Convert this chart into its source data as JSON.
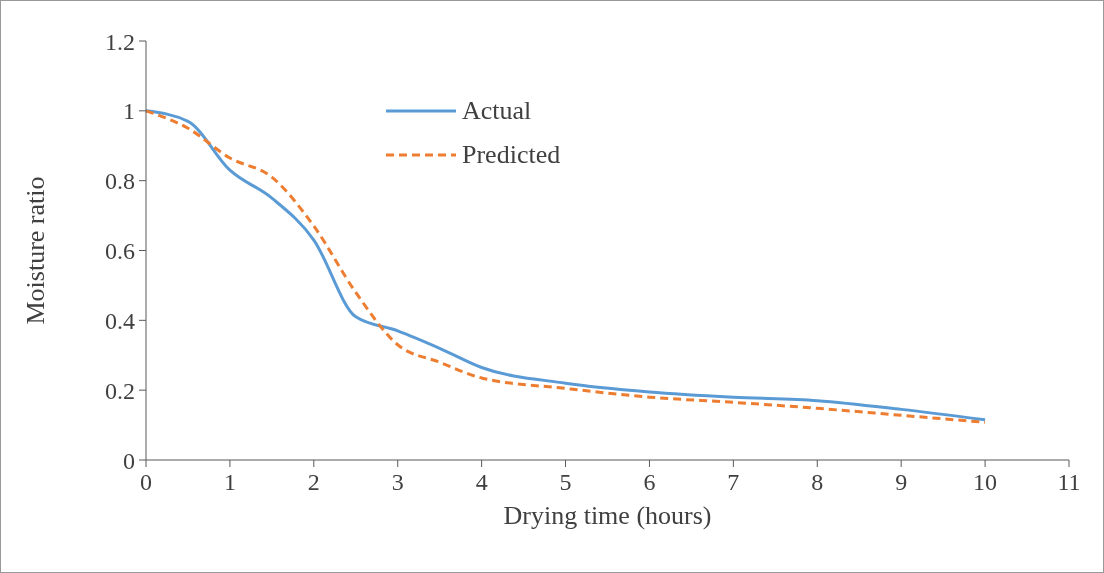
{
  "chart_data": {
    "type": "line",
    "xlabel": "Drying time (hours)",
    "ylabel": "Moisture ratio",
    "x": [
      0,
      0.5,
      1,
      1.5,
      2,
      2.5,
      3,
      3.5,
      4,
      5,
      6,
      7,
      8,
      9,
      10
    ],
    "series": [
      {
        "name": "Actual",
        "color": "#5b9bd5",
        "line_style": "solid",
        "values": [
          1,
          0.97,
          0.83,
          0.75,
          0.63,
          0.41,
          0.37,
          0.32,
          0.265,
          0.22,
          0.195,
          0.18,
          0.17,
          0.145,
          0.115
        ]
      },
      {
        "name": "Predicted",
        "color": "#ed7d31",
        "line_style": "dashed",
        "values": [
          1,
          0.95,
          0.865,
          0.81,
          0.67,
          0.48,
          0.33,
          0.28,
          0.235,
          0.205,
          0.18,
          0.165,
          0.148,
          0.128,
          0.108
        ]
      }
    ],
    "xlim": [
      0,
      11
    ],
    "xticks": [
      0,
      1,
      2,
      3,
      4,
      5,
      6,
      7,
      8,
      9,
      10,
      11
    ],
    "ylim": [
      0,
      1.2
    ],
    "yticks": [
      0,
      0.2,
      0.4,
      0.6,
      0.8,
      1,
      1.2
    ],
    "grid": false,
    "legend": "top",
    "marker": "none"
  }
}
